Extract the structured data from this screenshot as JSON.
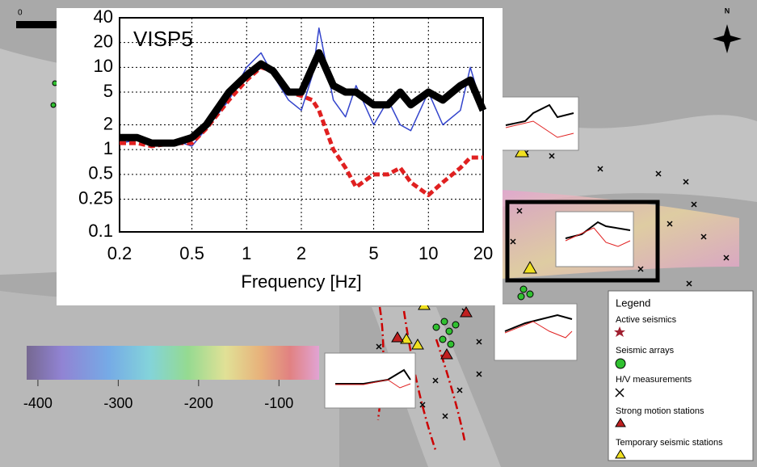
{
  "chart_data": {
    "type": "line",
    "annotation": "VISP5",
    "x_label": "Frequency [Hz]",
    "x": [
      0.2,
      0.25,
      0.3,
      0.4,
      0.5,
      0.6,
      0.8,
      1,
      1.2,
      1.4,
      1.7,
      2,
      2.3,
      2.5,
      3,
      3.5,
      4,
      5,
      6,
      7,
      8,
      10,
      12,
      15,
      17,
      20
    ],
    "series": [
      {
        "color": "#3344cc",
        "style": "thin",
        "values": [
          1.2,
          1.3,
          1.1,
          1.3,
          1.1,
          1.8,
          4,
          10,
          15,
          8,
          4,
          3,
          8,
          30,
          4,
          2.5,
          6,
          2,
          4,
          2,
          1.7,
          5,
          2,
          3,
          10,
          3
        ]
      },
      {
        "color": "#e02020",
        "style": "dashed",
        "values": [
          1.2,
          1.2,
          1.1,
          1.2,
          1.2,
          1.8,
          4,
          7,
          10,
          9,
          5,
          4.5,
          4,
          3,
          1,
          0.6,
          0.35,
          0.5,
          0.5,
          0.6,
          0.4,
          0.28,
          0.4,
          0.6,
          0.8,
          0.8
        ]
      },
      {
        "color": "#000000",
        "style": "thick",
        "values": [
          1.4,
          1.4,
          1.2,
          1.2,
          1.4,
          2,
          5,
          8,
          11,
          9,
          5,
          5,
          10,
          15,
          6,
          5,
          5,
          3.5,
          3.5,
          5,
          3.5,
          5,
          4,
          6,
          7,
          3
        ]
      }
    ],
    "xscale": "log",
    "yscale": "log",
    "xlim": [
      0.2,
      20
    ],
    "ylim": [
      0.1,
      40
    ],
    "xticks": [
      0.2,
      0.5,
      1,
      2,
      5,
      10,
      20
    ],
    "yticks": [
      40,
      20,
      10,
      5,
      2,
      1,
      0.5,
      0.25,
      0.1
    ],
    "grid": true
  },
  "scale_bar": {
    "label": "0"
  },
  "north_arrow": {
    "label": "N"
  },
  "colorbar": {
    "lim": [
      -414,
      -50
    ],
    "ticks": [
      -400,
      -300,
      -200,
      -100
    ]
  },
  "legend": {
    "title": "Legend",
    "items": [
      "Active seismics",
      "Seismic arrays",
      "H/V measurements",
      "Strong motion stations",
      "Temporary seismic stations"
    ]
  }
}
